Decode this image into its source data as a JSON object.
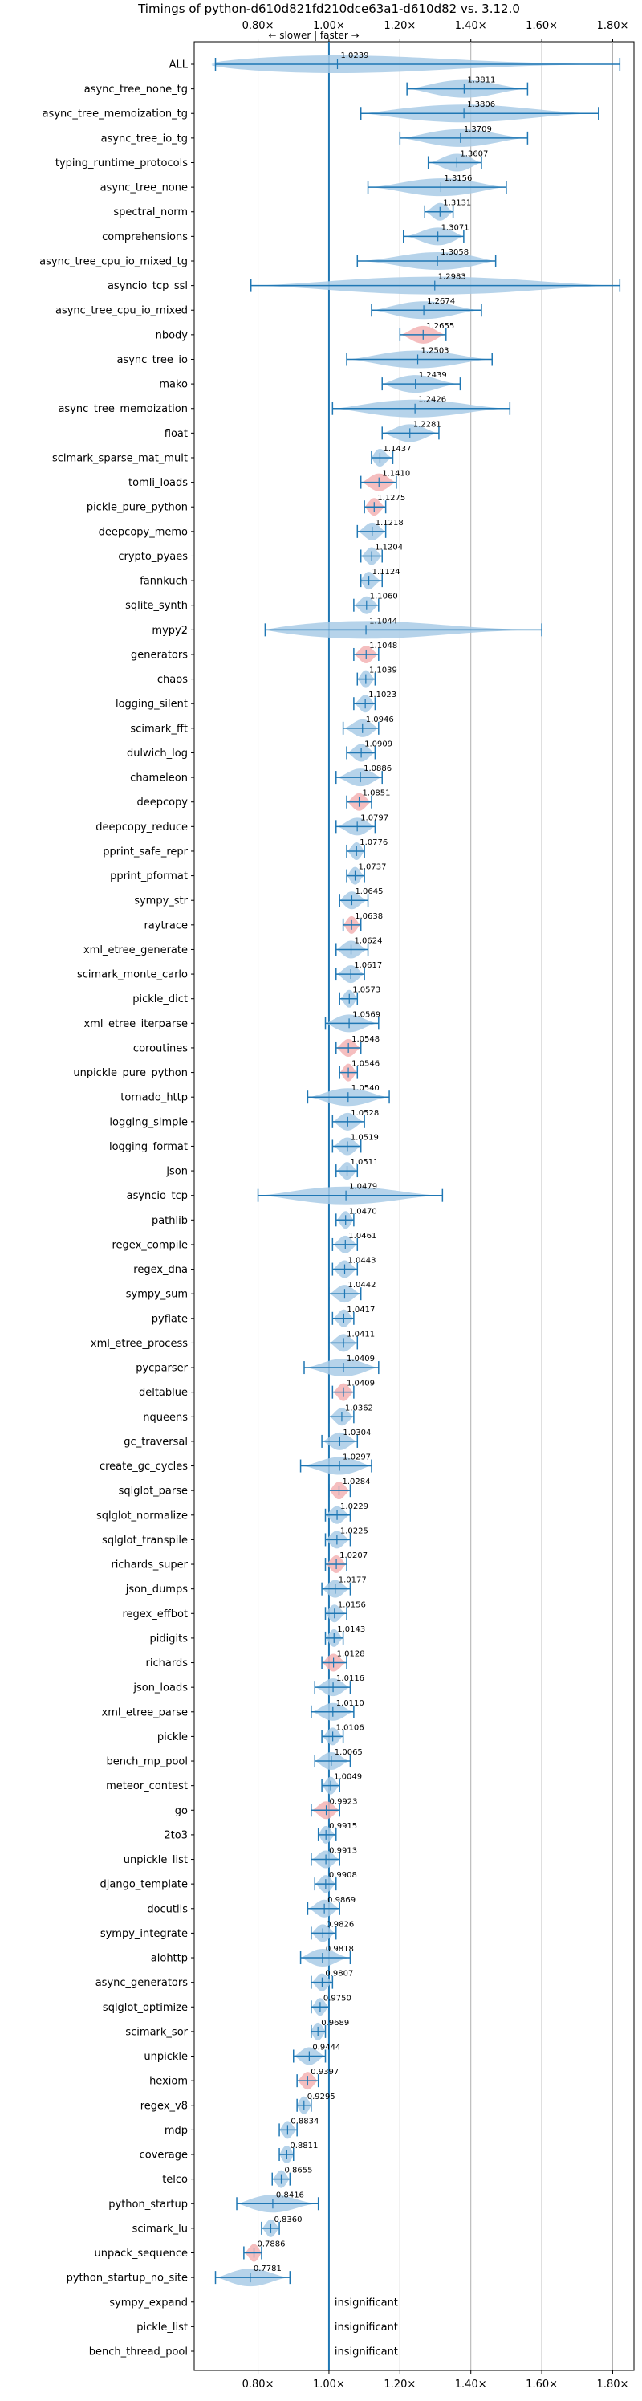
{
  "colors": {
    "violin_faster": "#a9cbe6",
    "violin_slower": "#f3b3b4",
    "stat_line": "#1f77b4",
    "baseline": "#1f77b4",
    "grid": "#b0b0b0"
  },
  "chart_data": {
    "type": "violin",
    "title": "Timings of python-d610d821fd210dce63a1-d610d82 vs. 3.12.0",
    "direction_label": "← slower | faster →",
    "xlim": [
      0.62,
      1.86
    ],
    "xticks": [
      0.8,
      1.0,
      1.2,
      1.4,
      1.6,
      1.8
    ],
    "xtick_labels": [
      "0.80×",
      "1.00×",
      "1.20×",
      "1.40×",
      "1.60×",
      "1.80×"
    ],
    "grid": true,
    "orientation": "horizontal",
    "insignificant_label": "insignificant",
    "benchmarks": [
      {
        "name": "ALL",
        "label": "1.0239",
        "value": 1.0239,
        "min": 0.68,
        "max": 1.82
      },
      {
        "name": "async_tree_none_tg",
        "label": "1.3811",
        "value": 1.3811,
        "min": 1.22,
        "max": 1.56
      },
      {
        "name": "async_tree_memoization_tg",
        "label": "1.3806",
        "value": 1.3806,
        "min": 1.09,
        "max": 1.76
      },
      {
        "name": "async_tree_io_tg",
        "label": "1.3709",
        "value": 1.3709,
        "min": 1.2,
        "max": 1.56
      },
      {
        "name": "typing_runtime_protocols",
        "label": "1.3607",
        "value": 1.3607,
        "min": 1.28,
        "max": 1.43
      },
      {
        "name": "async_tree_none",
        "label": "1.3156",
        "value": 1.3156,
        "min": 1.11,
        "max": 1.5
      },
      {
        "name": "spectral_norm",
        "label": "1.3131",
        "value": 1.3131,
        "min": 1.27,
        "max": 1.35
      },
      {
        "name": "comprehensions",
        "label": "1.3071",
        "value": 1.3071,
        "min": 1.21,
        "max": 1.38
      },
      {
        "name": "async_tree_cpu_io_mixed_tg",
        "label": "1.3058",
        "value": 1.3058,
        "min": 1.08,
        "max": 1.47
      },
      {
        "name": "asyncio_tcp_ssl",
        "label": "1.2983",
        "value": 1.2983,
        "min": 0.78,
        "max": 1.82
      },
      {
        "name": "async_tree_cpu_io_mixed",
        "label": "1.2674",
        "value": 1.2674,
        "min": 1.12,
        "max": 1.43
      },
      {
        "name": "nbody",
        "label": "1.2655",
        "value": 1.2655,
        "min": 1.2,
        "max": 1.33,
        "slower": true
      },
      {
        "name": "async_tree_io",
        "label": "1.2503",
        "value": 1.2503,
        "min": 1.05,
        "max": 1.46
      },
      {
        "name": "mako",
        "label": "1.2439",
        "value": 1.2439,
        "min": 1.15,
        "max": 1.37
      },
      {
        "name": "async_tree_memoization",
        "label": "1.2426",
        "value": 1.2426,
        "min": 1.01,
        "max": 1.51
      },
      {
        "name": "float",
        "label": "1.2281",
        "value": 1.2281,
        "min": 1.15,
        "max": 1.31
      },
      {
        "name": "scimark_sparse_mat_mult",
        "label": "1.1437",
        "value": 1.1437,
        "min": 1.12,
        "max": 1.18
      },
      {
        "name": "tomli_loads",
        "label": "1.1410",
        "value": 1.141,
        "min": 1.09,
        "max": 1.19,
        "slower": true
      },
      {
        "name": "pickle_pure_python",
        "label": "1.1275",
        "value": 1.1275,
        "min": 1.1,
        "max": 1.16,
        "slower": true
      },
      {
        "name": "deepcopy_memo",
        "label": "1.1218",
        "value": 1.1218,
        "min": 1.08,
        "max": 1.16
      },
      {
        "name": "crypto_pyaes",
        "label": "1.1204",
        "value": 1.1204,
        "min": 1.09,
        "max": 1.15
      },
      {
        "name": "fannkuch",
        "label": "1.1124",
        "value": 1.1124,
        "min": 1.09,
        "max": 1.15
      },
      {
        "name": "sqlite_synth",
        "label": "1.1060",
        "value": 1.106,
        "min": 1.07,
        "max": 1.14
      },
      {
        "name": "mypy2",
        "label": "1.1044",
        "value": 1.1044,
        "min": 0.82,
        "max": 1.6
      },
      {
        "name": "generators",
        "label": "1.1048",
        "value": 1.1048,
        "min": 1.07,
        "max": 1.14,
        "slower": true
      },
      {
        "name": "chaos",
        "label": "1.1039",
        "value": 1.1039,
        "min": 1.08,
        "max": 1.13
      },
      {
        "name": "logging_silent",
        "label": "1.1023",
        "value": 1.1023,
        "min": 1.07,
        "max": 1.13
      },
      {
        "name": "scimark_fft",
        "label": "1.0946",
        "value": 1.0946,
        "min": 1.04,
        "max": 1.14
      },
      {
        "name": "dulwich_log",
        "label": "1.0909",
        "value": 1.0909,
        "min": 1.05,
        "max": 1.13
      },
      {
        "name": "chameleon",
        "label": "1.0886",
        "value": 1.0886,
        "min": 1.02,
        "max": 1.15
      },
      {
        "name": "deepcopy",
        "label": "1.0851",
        "value": 1.0851,
        "min": 1.05,
        "max": 1.12,
        "slower": true
      },
      {
        "name": "deepcopy_reduce",
        "label": "1.0797",
        "value": 1.0797,
        "min": 1.02,
        "max": 1.13
      },
      {
        "name": "pprint_safe_repr",
        "label": "1.0776",
        "value": 1.0776,
        "min": 1.05,
        "max": 1.1
      },
      {
        "name": "pprint_pformat",
        "label": "1.0737",
        "value": 1.0737,
        "min": 1.05,
        "max": 1.1
      },
      {
        "name": "sympy_str",
        "label": "1.0645",
        "value": 1.0645,
        "min": 1.03,
        "max": 1.11
      },
      {
        "name": "raytrace",
        "label": "1.0638",
        "value": 1.0638,
        "min": 1.04,
        "max": 1.09,
        "slower": true
      },
      {
        "name": "xml_etree_generate",
        "label": "1.0624",
        "value": 1.0624,
        "min": 1.02,
        "max": 1.11
      },
      {
        "name": "scimark_monte_carlo",
        "label": "1.0617",
        "value": 1.0617,
        "min": 1.02,
        "max": 1.1
      },
      {
        "name": "pickle_dict",
        "label": "1.0573",
        "value": 1.0573,
        "min": 1.03,
        "max": 1.08
      },
      {
        "name": "xml_etree_iterparse",
        "label": "1.0569",
        "value": 1.0569,
        "min": 0.99,
        "max": 1.14
      },
      {
        "name": "coroutines",
        "label": "1.0548",
        "value": 1.0548,
        "min": 1.02,
        "max": 1.09,
        "slower": true
      },
      {
        "name": "unpickle_pure_python",
        "label": "1.0546",
        "value": 1.0546,
        "min": 1.03,
        "max": 1.08,
        "slower": true
      },
      {
        "name": "tornado_http",
        "label": "1.0540",
        "value": 1.054,
        "min": 0.94,
        "max": 1.17
      },
      {
        "name": "logging_simple",
        "label": "1.0528",
        "value": 1.0528,
        "min": 1.01,
        "max": 1.1
      },
      {
        "name": "logging_format",
        "label": "1.0519",
        "value": 1.0519,
        "min": 1.01,
        "max": 1.09
      },
      {
        "name": "json",
        "label": "1.0511",
        "value": 1.0511,
        "min": 1.02,
        "max": 1.08
      },
      {
        "name": "asyncio_tcp",
        "label": "1.0479",
        "value": 1.0479,
        "min": 0.8,
        "max": 1.32
      },
      {
        "name": "pathlib",
        "label": "1.0470",
        "value": 1.047,
        "min": 1.02,
        "max": 1.07
      },
      {
        "name": "regex_compile",
        "label": "1.0461",
        "value": 1.0461,
        "min": 1.01,
        "max": 1.08
      },
      {
        "name": "regex_dna",
        "label": "1.0443",
        "value": 1.0443,
        "min": 1.01,
        "max": 1.08
      },
      {
        "name": "sympy_sum",
        "label": "1.0442",
        "value": 1.0442,
        "min": 1.0,
        "max": 1.09
      },
      {
        "name": "pyflate",
        "label": "1.0417",
        "value": 1.0417,
        "min": 1.01,
        "max": 1.07
      },
      {
        "name": "xml_etree_process",
        "label": "1.0411",
        "value": 1.0411,
        "min": 1.0,
        "max": 1.08
      },
      {
        "name": "pycparser",
        "label": "1.0409",
        "value": 1.0409,
        "min": 0.93,
        "max": 1.14
      },
      {
        "name": "deltablue",
        "label": "1.0409",
        "value": 1.0409,
        "min": 1.01,
        "max": 1.07,
        "slower": true
      },
      {
        "name": "nqueens",
        "label": "1.0362",
        "value": 1.0362,
        "min": 1.0,
        "max": 1.07
      },
      {
        "name": "gc_traversal",
        "label": "1.0304",
        "value": 1.0304,
        "min": 0.98,
        "max": 1.08
      },
      {
        "name": "create_gc_cycles",
        "label": "1.0297",
        "value": 1.0297,
        "min": 0.92,
        "max": 1.12
      },
      {
        "name": "sqlglot_parse",
        "label": "1.0284",
        "value": 1.0284,
        "min": 1.0,
        "max": 1.06,
        "slower": true
      },
      {
        "name": "sqlglot_normalize",
        "label": "1.0229",
        "value": 1.0229,
        "min": 0.99,
        "max": 1.06
      },
      {
        "name": "sqlglot_transpile",
        "label": "1.0225",
        "value": 1.0225,
        "min": 0.99,
        "max": 1.06
      },
      {
        "name": "richards_super",
        "label": "1.0207",
        "value": 1.0207,
        "min": 0.99,
        "max": 1.05,
        "slower": true
      },
      {
        "name": "json_dumps",
        "label": "1.0177",
        "value": 1.0177,
        "min": 0.98,
        "max": 1.06
      },
      {
        "name": "regex_effbot",
        "label": "1.0156",
        "value": 1.0156,
        "min": 0.99,
        "max": 1.05
      },
      {
        "name": "pidigits",
        "label": "1.0143",
        "value": 1.0143,
        "min": 0.99,
        "max": 1.04
      },
      {
        "name": "richards",
        "label": "1.0128",
        "value": 1.0128,
        "min": 0.98,
        "max": 1.05,
        "slower": true
      },
      {
        "name": "json_loads",
        "label": "1.0116",
        "value": 1.0116,
        "min": 0.96,
        "max": 1.06
      },
      {
        "name": "xml_etree_parse",
        "label": "1.0110",
        "value": 1.011,
        "min": 0.95,
        "max": 1.07
      },
      {
        "name": "pickle",
        "label": "1.0106",
        "value": 1.0106,
        "min": 0.98,
        "max": 1.04
      },
      {
        "name": "bench_mp_pool",
        "label": "1.0065",
        "value": 1.0065,
        "min": 0.96,
        "max": 1.06
      },
      {
        "name": "meteor_contest",
        "label": "1.0049",
        "value": 1.0049,
        "min": 0.98,
        "max": 1.03
      },
      {
        "name": "go",
        "label": "0.9923",
        "value": 0.9923,
        "min": 0.95,
        "max": 1.03,
        "slower": true
      },
      {
        "name": "2to3",
        "label": "0.9915",
        "value": 0.9915,
        "min": 0.97,
        "max": 1.02
      },
      {
        "name": "unpickle_list",
        "label": "0.9913",
        "value": 0.9913,
        "min": 0.95,
        "max": 1.03
      },
      {
        "name": "django_template",
        "label": "0.9908",
        "value": 0.9908,
        "min": 0.96,
        "max": 1.02
      },
      {
        "name": "docutils",
        "label": "0.9869",
        "value": 0.9869,
        "min": 0.94,
        "max": 1.03
      },
      {
        "name": "sympy_integrate",
        "label": "0.9826",
        "value": 0.9826,
        "min": 0.95,
        "max": 1.02
      },
      {
        "name": "aiohttp",
        "label": "0.9818",
        "value": 0.9818,
        "min": 0.92,
        "max": 1.06
      },
      {
        "name": "async_generators",
        "label": "0.9807",
        "value": 0.9807,
        "min": 0.95,
        "max": 1.01
      },
      {
        "name": "sqlglot_optimize",
        "label": "0.9750",
        "value": 0.975,
        "min": 0.95,
        "max": 1.0
      },
      {
        "name": "scimark_sor",
        "label": "0.9689",
        "value": 0.9689,
        "min": 0.95,
        "max": 0.99
      },
      {
        "name": "unpickle",
        "label": "0.9444",
        "value": 0.9444,
        "min": 0.9,
        "max": 0.99
      },
      {
        "name": "hexiom",
        "label": "0.9397",
        "value": 0.9397,
        "min": 0.91,
        "max": 0.97,
        "slower": true
      },
      {
        "name": "regex_v8",
        "label": "0.9295",
        "value": 0.9295,
        "min": 0.91,
        "max": 0.95
      },
      {
        "name": "mdp",
        "label": "0.8834",
        "value": 0.8834,
        "min": 0.86,
        "max": 0.91
      },
      {
        "name": "coverage",
        "label": "0.8811",
        "value": 0.8811,
        "min": 0.86,
        "max": 0.9
      },
      {
        "name": "telco",
        "label": "0.8655",
        "value": 0.8655,
        "min": 0.84,
        "max": 0.89
      },
      {
        "name": "python_startup",
        "label": "0.8416",
        "value": 0.8416,
        "min": 0.74,
        "max": 0.97
      },
      {
        "name": "scimark_lu",
        "label": "0.8360",
        "value": 0.836,
        "min": 0.81,
        "max": 0.86
      },
      {
        "name": "unpack_sequence",
        "label": "0.7886",
        "value": 0.7886,
        "min": 0.76,
        "max": 0.81,
        "slower": true
      },
      {
        "name": "python_startup_no_site",
        "label": "0.7781",
        "value": 0.7781,
        "min": 0.68,
        "max": 0.89
      },
      {
        "name": "sympy_expand",
        "insignificant": true
      },
      {
        "name": "pickle_list",
        "insignificant": true
      },
      {
        "name": "bench_thread_pool",
        "insignificant": true
      }
    ]
  }
}
